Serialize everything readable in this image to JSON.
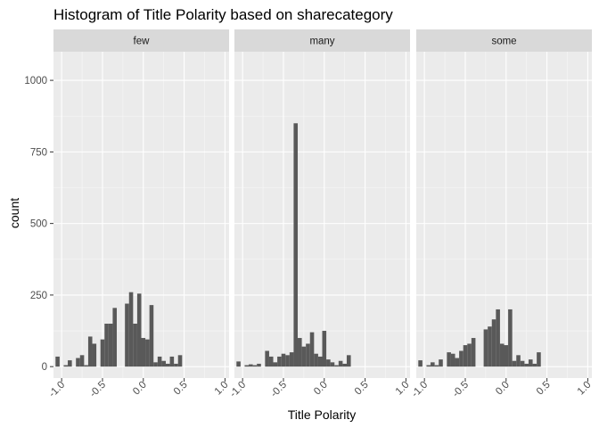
{
  "chart_data": {
    "type": "bar",
    "title": "Histogram of Title Polarity based on sharecategory",
    "xlabel": "Title Polarity",
    "ylabel": "count",
    "xlim": [
      -1.1,
      1.05
    ],
    "ylim": [
      -40,
      1100
    ],
    "x_ticks": [
      "-1.0",
      "-0.5",
      "0.0",
      "0.5",
      "1.0"
    ],
    "y_ticks": [
      0,
      250,
      500,
      750,
      1000
    ],
    "bin_width": 0.05,
    "bin_centers": [
      -1.0,
      -0.95,
      -0.9,
      -0.85,
      -0.8,
      -0.75,
      -0.7,
      -0.65,
      -0.6,
      -0.55,
      -0.5,
      -0.45,
      -0.4,
      -0.35,
      -0.3,
      -0.25,
      -0.2,
      -0.15,
      -0.1,
      -0.05,
      0.0,
      0.05,
      0.1,
      0.15,
      0.2,
      0.25,
      0.3,
      0.35,
      0.4,
      0.45,
      0.5,
      0.55,
      0.6,
      0.65,
      0.7,
      0.75,
      0.8,
      0.85,
      0.9,
      0.95,
      1.0
    ],
    "grid": true,
    "legend": "none",
    "bar_color": "#595959",
    "panel_background": "#ebebeb",
    "strip_background": "#d9d9d9",
    "series": [
      {
        "name": "few",
        "values": [
          35,
          0,
          5,
          22,
          0,
          30,
          40,
          5,
          105,
          80,
          0,
          95,
          150,
          150,
          205,
          0,
          0,
          220,
          260,
          150,
          255,
          100,
          95,
          215,
          15,
          35,
          20,
          10,
          35,
          10,
          40
        ]
      },
      {
        "name": "many",
        "values": [
          18,
          0,
          5,
          8,
          5,
          10,
          0,
          55,
          35,
          15,
          35,
          45,
          40,
          50,
          850,
          100,
          70,
          80,
          120,
          45,
          35,
          125,
          25,
          15,
          5,
          20,
          10,
          40
        ]
      },
      {
        "name": "some",
        "values": [
          22,
          0,
          5,
          15,
          5,
          25,
          0,
          50,
          45,
          30,
          55,
          75,
          80,
          100,
          0,
          0,
          130,
          140,
          165,
          200,
          80,
          75,
          200,
          20,
          40,
          20,
          10,
          25,
          10,
          50
        ]
      }
    ]
  },
  "facet_x_values": {
    "few": [
      -1.05,
      -1.0,
      -0.95,
      -0.9,
      -0.85,
      -0.8,
      -0.75,
      -0.7,
      -0.65,
      -0.6,
      -0.55,
      -0.5,
      -0.45,
      -0.4,
      -0.35,
      -0.3,
      -0.25,
      -0.2,
      -0.15,
      -0.1,
      -0.05,
      0.0,
      0.05,
      0.1,
      0.15,
      0.2,
      0.25,
      0.3,
      0.35,
      0.4,
      0.45
    ],
    "many": [
      -1.05,
      -1.0,
      -0.95,
      -0.9,
      -0.85,
      -0.8,
      -0.75,
      -0.7,
      -0.65,
      -0.6,
      -0.55,
      -0.5,
      -0.45,
      -0.4,
      -0.35,
      -0.3,
      -0.25,
      -0.2,
      -0.15,
      -0.1,
      -0.05,
      0.0,
      0.05,
      0.1,
      0.15,
      0.2,
      0.25,
      0.3
    ],
    "some": [
      -1.05,
      -1.0,
      -0.95,
      -0.9,
      -0.85,
      -0.8,
      -0.75,
      -0.7,
      -0.65,
      -0.6,
      -0.55,
      -0.5,
      -0.45,
      -0.4,
      -0.35,
      -0.3,
      -0.25,
      -0.2,
      -0.15,
      -0.1,
      -0.05,
      0.0,
      0.05,
      0.1,
      0.15,
      0.2,
      0.25,
      0.3,
      0.35,
      0.4
    ]
  }
}
